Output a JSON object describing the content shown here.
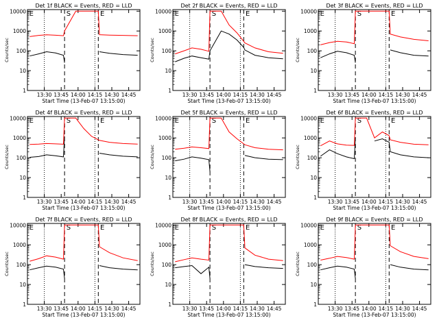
{
  "window": {
    "title": ""
  },
  "common": {
    "ylabel": "Counts/sec",
    "xlabel": "Start Time (13-Feb-07 13:15:00)",
    "xticks": [
      "13:30",
      "13:45",
      "14:00",
      "14:15",
      "14:30",
      "14:45"
    ],
    "yticks": [
      "1",
      "10",
      "100",
      "1000",
      "10000"
    ],
    "markers": {
      "start": "E",
      "middle": "S",
      "end": "E"
    }
  },
  "colors": {
    "events": "#000000",
    "lld": "#ff0000"
  },
  "chart_data": [
    {
      "type": "line",
      "title": "Det 1f BLACK = Events, RED = LLD",
      "xlabel": "Start Time (13-Feb-07 13:15:00)",
      "ylabel": "Counts/sec",
      "yscale": "log",
      "ylim": [
        1,
        12000
      ],
      "xlim": [
        "13:15",
        "14:55"
      ],
      "x": [
        "13:17",
        "13:25",
        "13:32",
        "13:40",
        "13:47",
        "13:48",
        "13:58",
        "14:05",
        "14:12",
        "14:18",
        "14:19",
        "14:28",
        "14:40",
        "14:53"
      ],
      "series": [
        {
          "name": "Events",
          "values": [
            55,
            70,
            90,
            78,
            60,
            25,
            null,
            null,
            null,
            null,
            90,
            75,
            65,
            60
          ]
        },
        {
          "name": "LLD",
          "values": [
            520,
            600,
            640,
            610,
            580,
            1000,
            10000,
            10000,
            10000,
            10000,
            650,
            620,
            600,
            580
          ]
        }
      ]
    },
    {
      "type": "line",
      "title": "Det 2f BLACK = Events, RED = LLD",
      "xlabel": "Start Time (13-Feb-07 13:15:00)",
      "ylabel": "Counts/sec",
      "yscale": "log",
      "ylim": [
        1,
        12000
      ],
      "xlim": [
        "13:15",
        "14:55"
      ],
      "x": [
        "13:17",
        "13:25",
        "13:32",
        "13:40",
        "13:47",
        "13:48",
        "13:58",
        "14:05",
        "14:12",
        "14:18",
        "14:19",
        "14:28",
        "14:40",
        "14:53"
      ],
      "series": [
        {
          "name": "Events",
          "values": [
            28,
            42,
            55,
            45,
            38,
            100,
            1000,
            700,
            350,
            150,
            110,
            60,
            45,
            40
          ]
        },
        {
          "name": "LLD",
          "values": [
            70,
            100,
            140,
            120,
            95,
            10000,
            10000,
            2000,
            800,
            300,
            250,
            140,
            90,
            75
          ]
        }
      ]
    },
    {
      "type": "line",
      "title": "Det 3f BLACK = Events, RED = LLD",
      "xlabel": "Start Time (13-Feb-07 13:15:00)",
      "ylabel": "Counts/sec",
      "yscale": "log",
      "ylim": [
        1,
        12000
      ],
      "xlim": [
        "13:15",
        "14:55"
      ],
      "x": [
        "13:17",
        "13:25",
        "13:32",
        "13:40",
        "13:47",
        "13:48",
        "13:58",
        "14:05",
        "14:12",
        "14:18",
        "14:19",
        "14:28",
        "14:40",
        "14:53"
      ],
      "series": [
        {
          "name": "Events",
          "values": [
            45,
            70,
            95,
            80,
            60,
            25,
            null,
            null,
            null,
            null,
            110,
            80,
            60,
            55
          ]
        },
        {
          "name": "LLD",
          "values": [
            200,
            260,
            300,
            280,
            230,
            10000,
            10000,
            10000,
            10000,
            10000,
            700,
            500,
            380,
            320
          ]
        }
      ]
    },
    {
      "type": "line",
      "title": "Det 4f BLACK = Events, RED = LLD",
      "xlabel": "Start Time (13-Feb-07 13:15:00)",
      "ylabel": "Counts/sec",
      "yscale": "log",
      "ylim": [
        1,
        12000
      ],
      "xlim": [
        "13:15",
        "14:55"
      ],
      "x": [
        "13:17",
        "13:25",
        "13:32",
        "13:40",
        "13:47",
        "13:48",
        "13:58",
        "14:05",
        "14:12",
        "14:18",
        "14:19",
        "14:28",
        "14:40",
        "14:53"
      ],
      "series": [
        {
          "name": "Events",
          "values": [
            105,
            115,
            140,
            125,
            110,
            1200,
            null,
            null,
            null,
            null,
            170,
            140,
            120,
            110
          ]
        },
        {
          "name": "LLD",
          "values": [
            470,
            490,
            520,
            500,
            480,
            10000,
            10000,
            3000,
            1200,
            800,
            750,
            600,
            520,
            490
          ]
        }
      ]
    },
    {
      "type": "line",
      "title": "Det 5f BLACK = Events, RED = LLD",
      "xlabel": "Start Time (13-Feb-07 13:15:00)",
      "ylabel": "Counts/sec",
      "yscale": "log",
      "ylim": [
        1,
        12000
      ],
      "xlim": [
        "13:15",
        "14:55"
      ],
      "x": [
        "13:17",
        "13:25",
        "13:32",
        "13:40",
        "13:47",
        "13:48",
        "13:58",
        "14:05",
        "14:12",
        "14:18",
        "14:19",
        "14:28",
        "14:40",
        "14:53"
      ],
      "series": [
        {
          "name": "Events",
          "values": [
            70,
            85,
            110,
            95,
            80,
            20,
            null,
            null,
            null,
            null,
            130,
            100,
            85,
            80
          ]
        },
        {
          "name": "LLD",
          "values": [
            270,
            300,
            350,
            320,
            290,
            10000,
            10000,
            2000,
            900,
            500,
            450,
            320,
            270,
            250
          ]
        }
      ]
    },
    {
      "type": "line",
      "title": "Det 6f BLACK = Events, RED = LLD",
      "xlabel": "Start Time (13-Feb-07 13:15:00)",
      "ylabel": "Counts/sec",
      "yscale": "log",
      "ylim": [
        1,
        12000
      ],
      "xlim": [
        "13:15",
        "14:55"
      ],
      "x": [
        "13:17",
        "13:25",
        "13:32",
        "13:40",
        "13:47",
        "13:48",
        "13:58",
        "14:05",
        "14:12",
        "14:18",
        "14:19",
        "14:28",
        "14:40",
        "14:53"
      ],
      "series": [
        {
          "name": "Events",
          "values": [
            120,
            250,
            160,
            110,
            90,
            1000,
            null,
            700,
            900,
            600,
            200,
            140,
            110,
            100
          ]
        },
        {
          "name": "LLD",
          "values": [
            400,
            700,
            500,
            430,
            420,
            10000,
            10000,
            1000,
            2000,
            1300,
            800,
            600,
            480,
            450
          ]
        }
      ]
    },
    {
      "type": "line",
      "title": "Det 7f BLACK = Events, RED = LLD",
      "xlabel": "Start Time (13-Feb-07 13:15:00)",
      "ylabel": "Counts/sec",
      "yscale": "log",
      "ylim": [
        1,
        12000
      ],
      "xlim": [
        "13:15",
        "14:55"
      ],
      "x": [
        "13:17",
        "13:25",
        "13:32",
        "13:40",
        "13:47",
        "13:48",
        "13:58",
        "14:05",
        "14:12",
        "14:18",
        "14:19",
        "14:28",
        "14:40",
        "14:53"
      ],
      "series": [
        {
          "name": "Events",
          "values": [
            55,
            70,
            85,
            75,
            60,
            20,
            null,
            null,
            null,
            null,
            90,
            70,
            60,
            55
          ]
        },
        {
          "name": "LLD",
          "values": [
            150,
            200,
            280,
            240,
            190,
            10000,
            10000,
            10000,
            10000,
            10000,
            800,
            400,
            220,
            160
          ]
        }
      ]
    },
    {
      "type": "line",
      "title": "Det 8f BLACK = Events, RED = LLD",
      "xlabel": "Start Time (13-Feb-07 13:15:00)",
      "ylabel": "Counts/sec",
      "yscale": "log",
      "ylim": [
        1,
        12000
      ],
      "xlim": [
        "13:15",
        "14:55"
      ],
      "x": [
        "13:17",
        "13:25",
        "13:32",
        "13:40",
        "13:47",
        "13:48",
        "13:58",
        "14:05",
        "14:12",
        "14:18",
        "14:19",
        "14:28",
        "14:40",
        "14:53"
      ],
      "series": [
        {
          "name": "Events",
          "values": [
            70,
            80,
            90,
            35,
            75,
            20,
            null,
            null,
            null,
            null,
            100,
            80,
            70,
            65
          ]
        },
        {
          "name": "LLD",
          "values": [
            140,
            180,
            220,
            190,
            170,
            10000,
            10000,
            10000,
            10000,
            10000,
            700,
            300,
            190,
            160
          ]
        }
      ]
    },
    {
      "type": "line",
      "title": "Det 9f BLACK = Events, RED = LLD",
      "xlabel": "Start Time (13-Feb-07 13:15:00)",
      "ylabel": "Counts/sec",
      "yscale": "log",
      "ylim": [
        1,
        12000
      ],
      "xlim": [
        "13:15",
        "14:55"
      ],
      "x": [
        "13:17",
        "13:25",
        "13:32",
        "13:40",
        "13:47",
        "13:48",
        "13:58",
        "14:05",
        "14:12",
        "14:18",
        "14:19",
        "14:28",
        "14:40",
        "14:53"
      ],
      "series": [
        {
          "name": "Events",
          "values": [
            55,
            70,
            85,
            75,
            60,
            20,
            null,
            null,
            null,
            null,
            100,
            75,
            60,
            55
          ]
        },
        {
          "name": "LLD",
          "values": [
            170,
            210,
            260,
            230,
            190,
            10000,
            10000,
            10000,
            10000,
            10000,
            900,
            450,
            260,
            200
          ]
        }
      ]
    }
  ]
}
